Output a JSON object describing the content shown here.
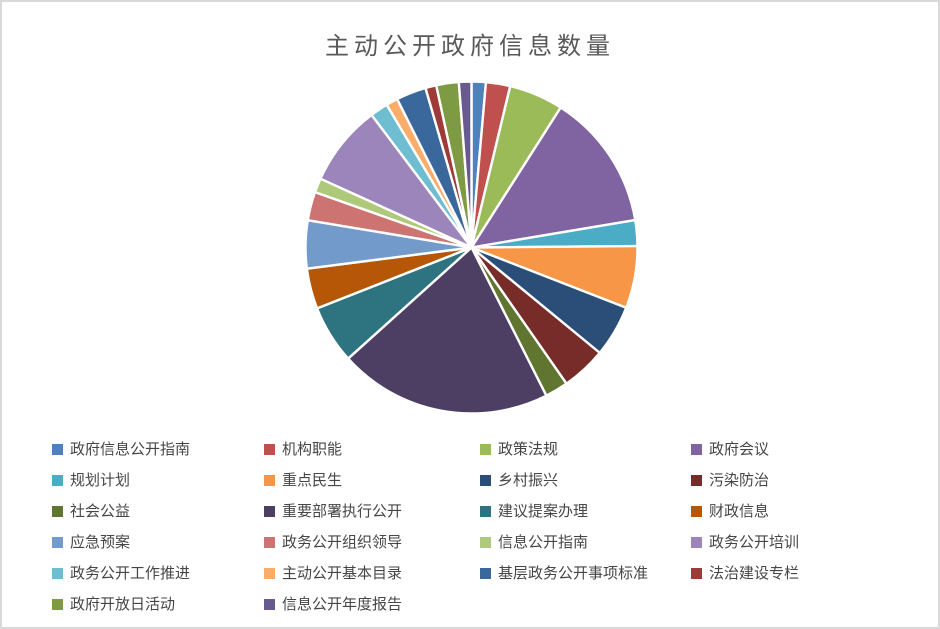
{
  "page": {
    "background": "#ffffff",
    "border_color": "#d9d9d9"
  },
  "chart_data": {
    "type": "pie",
    "title": "主动公开政府信息数量",
    "title_color": "#595959",
    "legend_position": "bottom",
    "legend_columns": 4,
    "data_labels": "none",
    "start_angle_deg": 0,
    "direction": "clockwise",
    "values_are": "estimated percent of whole",
    "labels": [
      "政府信息公开指南",
      "机构职能",
      "政策法规",
      "政府会议",
      "规划计划",
      "重点民生",
      "乡村振兴",
      "污染防治",
      "社会公益",
      "重要部署执行公开",
      "建议提案办理",
      "财政信息",
      "应急预案",
      "政务公开组织领导",
      "信息公开指南",
      "政务公开培训",
      "政务公开工作推进",
      "主动公开基本目录",
      "基层政务公开事项标准",
      "法治建设专栏",
      "政府开放日活动",
      "信息公开年度报告"
    ],
    "values": [
      1.39,
      2.36,
      5.28,
      13.33,
      2.5,
      6.06,
      5.03,
      4.36,
      2.25,
      20.78,
      5.69,
      3.94,
      4.67,
      2.78,
      1.39,
      7.92,
      1.75,
      1.14,
      2.92,
      1.06,
      2.19,
      1.22
    ],
    "colors": [
      "#4F81BD",
      "#C0504D",
      "#9BBB59",
      "#8064A2",
      "#4BACC6",
      "#F79646",
      "#2A4E77",
      "#772C2A",
      "#5F7530",
      "#4D3F63",
      "#2E7380",
      "#B65708",
      "#729ACA",
      "#CD7371",
      "#AFC97A",
      "#9C85BB",
      "#6FBDD1",
      "#FAAC6A",
      "#3A679C",
      "#9E3B38",
      "#7E9B44",
      "#665A8F"
    ]
  }
}
